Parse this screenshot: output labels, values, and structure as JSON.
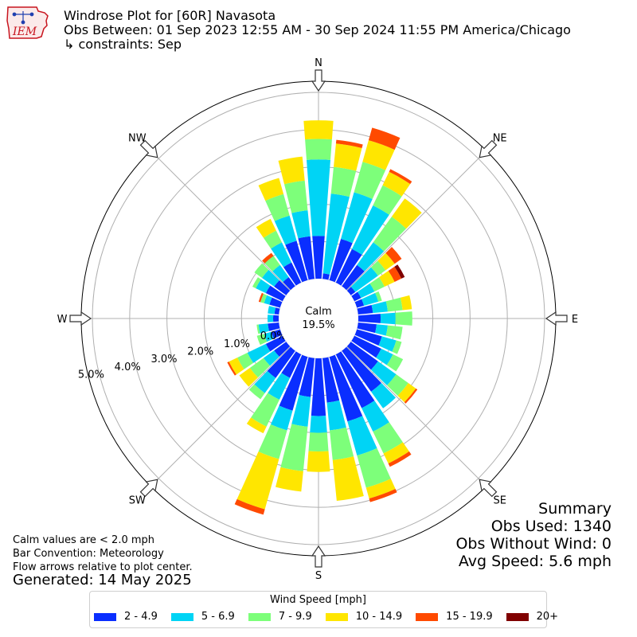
{
  "header": {
    "title": "Windrose Plot for [60R] Navasota",
    "subtitle": "Obs Between: 01 Sep 2023 12:55 AM - 30 Sep 2024 11:55 PM America/Chicago",
    "constraints": "↳ constraints: Sep",
    "logo_text": "IEM"
  },
  "summary": {
    "heading": "Summary",
    "obs_used": "Obs Used: 1340",
    "obs_without_wind": "Obs Without Wind: 0",
    "avg_speed": "Avg Speed: 5.6 mph"
  },
  "notes": {
    "calm_def": "Calm values are < 2.0 mph",
    "bar_convention": "Bar Convention: Meteorology",
    "flow_arrows": "Flow arrows relative to plot center.",
    "generated": "Generated: 14 May 2025"
  },
  "legend": {
    "title": "Wind Speed [mph]",
    "items": [
      {
        "label": "2 - 4.9",
        "color": "#0a2eff"
      },
      {
        "label": "5 - 6.9",
        "color": "#00d4f5"
      },
      {
        "label": "7 - 9.9",
        "color": "#7dff7a"
      },
      {
        "label": "10 - 14.9",
        "color": "#ffe600"
      },
      {
        "label": "15 - 19.9",
        "color": "#ff4a00"
      },
      {
        "label": "20+",
        "color": "#800000"
      }
    ]
  },
  "chart_data": {
    "type": "windrose",
    "calm_label": "Calm",
    "calm_value": "19.5%",
    "radial_unit": "percent",
    "radial_ticks": [
      0,
      1,
      2,
      3,
      4,
      5
    ],
    "radial_tick_labels": [
      "0.0%",
      "1.0%",
      "2.0%",
      "3.0%",
      "4.0%",
      "5.0%"
    ],
    "rmax": 5.3,
    "compass_labels": [
      {
        "label": "N",
        "deg": 0
      },
      {
        "label": "NE",
        "deg": 45
      },
      {
        "label": "E",
        "deg": 90
      },
      {
        "label": "SE",
        "deg": 135
      },
      {
        "label": "S",
        "deg": 180
      },
      {
        "label": "SW",
        "deg": 225
      },
      {
        "label": "W",
        "deg": 270
      },
      {
        "label": "NW",
        "deg": 315
      }
    ],
    "speed_bins": [
      "2 - 4.9",
      "5 - 6.9",
      "7 - 9.9",
      "10 - 14.9",
      "15 - 19.9",
      "20+"
    ],
    "directions": [
      0,
      10,
      20,
      30,
      40,
      50,
      60,
      70,
      80,
      90,
      100,
      110,
      120,
      130,
      140,
      150,
      160,
      170,
      180,
      190,
      200,
      210,
      220,
      230,
      240,
      250,
      260,
      270,
      280,
      290,
      300,
      310,
      320,
      330,
      340,
      350
    ],
    "cumulative_percent": [
      [
        1.15,
        3.2,
        3.75,
        4.25,
        4.25,
        4.25
      ],
      [
        0.15,
        2.3,
        3.02,
        3.65,
        3.75,
        3.75
      ],
      [
        1.15,
        2.45,
        3.3,
        3.9,
        4.25,
        4.25
      ],
      [
        1.0,
        2.3,
        2.9,
        3.3,
        3.38,
        3.38
      ],
      [
        0.7,
        1.45,
        2.3,
        2.9,
        2.9,
        2.9
      ],
      [
        0.15,
        0.9,
        1.15,
        1.45,
        1.68,
        1.68
      ],
      [
        0.2,
        0.6,
        0.9,
        1.2,
        1.4,
        1.5
      ],
      [
        0.2,
        0.6,
        0.7,
        0.7,
        0.7,
        0.7
      ],
      [
        0.4,
        0.8,
        1.2,
        1.45,
        1.45,
        1.45
      ],
      [
        0.6,
        1.0,
        1.45,
        1.45,
        1.45,
        1.45
      ],
      [
        0.5,
        0.8,
        1.2,
        1.2,
        1.2,
        1.2
      ],
      [
        0.7,
        1.1,
        1.25,
        1.25,
        1.25,
        1.25
      ],
      [
        0.8,
        1.15,
        1.45,
        1.45,
        1.45,
        1.45
      ],
      [
        0.9,
        1.5,
        1.9,
        2.15,
        2.2,
        2.2
      ],
      [
        1.35,
        1.9,
        1.9,
        1.9,
        1.9,
        1.9
      ],
      [
        1.6,
        2.3,
        2.95,
        3.25,
        3.35,
        3.35
      ],
      [
        1.8,
        2.75,
        3.65,
        3.95,
        4.05,
        4.05
      ],
      [
        1.2,
        1.95,
        2.75,
        3.85,
        3.85,
        3.85
      ],
      [
        1.55,
        2.0,
        2.5,
        3.05,
        3.05,
        3.05
      ],
      [
        1.05,
        1.85,
        3.05,
        3.6,
        3.6,
        3.6
      ],
      [
        1.5,
        2.05,
        2.85,
        4.25,
        4.4,
        4.4
      ],
      [
        0.7,
        1.35,
        2.15,
        2.35,
        2.35,
        2.35
      ],
      [
        0.9,
        1.4,
        1.6,
        1.6,
        1.6,
        1.6
      ],
      [
        0.4,
        0.75,
        1.2,
        1.55,
        1.55,
        1.55
      ],
      [
        0.5,
        1.05,
        1.35,
        1.6,
        1.65,
        1.65
      ],
      [
        0.25,
        0.45,
        0.65,
        0.65,
        0.65,
        0.65
      ],
      [
        0.3,
        0.55,
        0.6,
        0.6,
        0.6,
        0.6
      ],
      [
        0.15,
        0.3,
        0.3,
        0.3,
        0.3,
        0.3
      ],
      [
        0.12,
        0.3,
        0.3,
        0.3,
        0.3,
        0.3
      ],
      [
        0.3,
        0.45,
        0.55,
        0.55,
        0.6,
        0.6
      ],
      [
        0.5,
        0.8,
        0.9,
        0.9,
        0.9,
        0.9
      ],
      [
        0.4,
        0.8,
        1.05,
        1.05,
        1.05,
        1.05
      ],
      [
        0.3,
        0.7,
        1.0,
        1.0,
        1.1,
        1.1
      ],
      [
        0.6,
        1.2,
        1.55,
        1.9,
        1.9,
        1.9
      ],
      [
        1.1,
        1.8,
        2.4,
        2.85,
        2.85,
        2.85
      ],
      [
        1.15,
        1.85,
        2.65,
        3.3,
        3.3,
        3.3
      ]
    ]
  }
}
